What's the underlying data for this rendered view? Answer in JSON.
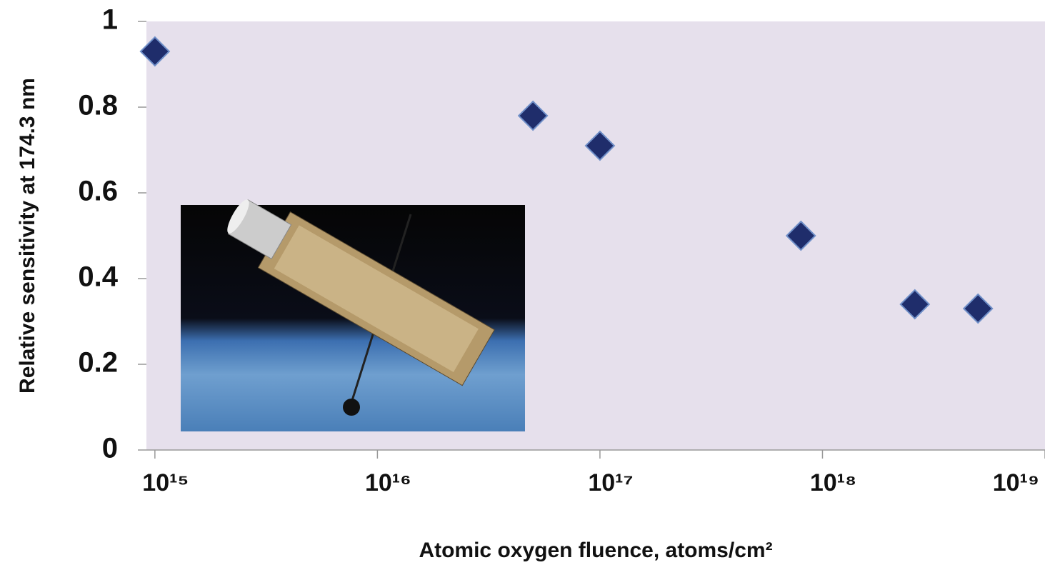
{
  "chart_data": {
    "type": "scatter",
    "x_label": "Atomic oxygen fluence,  atoms/cm²",
    "y_label": "Relative  sensitivity at 174.3 nm",
    "x": [
      1000000000000000.0,
      5e+16,
      1e+17,
      8e+17,
      2.6e+18,
      5e+18
    ],
    "values": [
      0.93,
      0.78,
      0.71,
      0.5,
      0.34,
      0.33
    ],
    "color": "#1f2d6b",
    "xscale": "log",
    "xlim": [
      900000000000000.0,
      1e+19
    ],
    "xticks": [
      {
        "value": 1000000000000000.0,
        "label": "10¹⁵"
      },
      {
        "value": 1e+16,
        "label": "10¹⁶"
      },
      {
        "value": 1e+17,
        "label": "10¹⁷"
      },
      {
        "value": 1e+18,
        "label": "10¹⁸"
      },
      {
        "value": 1e+19,
        "label": "10¹⁹"
      }
    ],
    "ylim": [
      0,
      1
    ],
    "yticks": [
      0,
      0.2,
      0.4,
      0.6,
      0.8,
      1
    ]
  }
}
